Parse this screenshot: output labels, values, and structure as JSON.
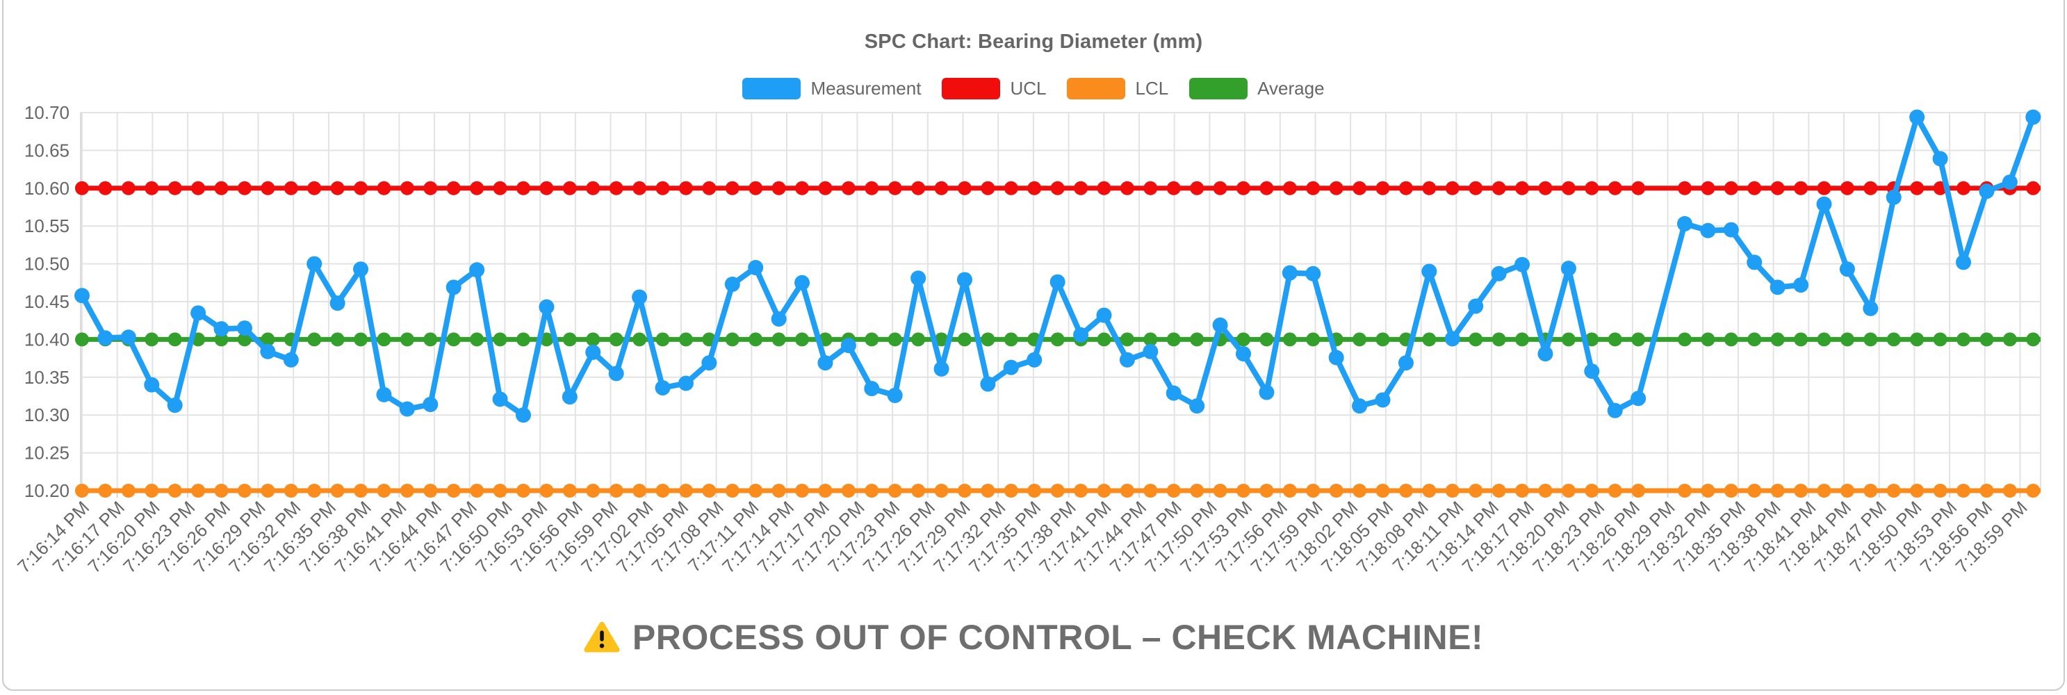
{
  "title": "SPC Chart: Bearing Diameter (mm)",
  "legend": {
    "items": [
      {
        "id": "measurement",
        "label": "Measurement",
        "color": "#1E9EF4"
      },
      {
        "id": "ucl",
        "label": "UCL",
        "color": "#F20D0D"
      },
      {
        "id": "lcl",
        "label": "LCL",
        "color": "#F98C1C"
      },
      {
        "id": "average",
        "label": "Average",
        "color": "#33A02C"
      }
    ]
  },
  "warning": {
    "icon": "warning-triangle",
    "text": "PROCESS OUT OF CONTROL – CHECK MACHINE!"
  },
  "chart_data": {
    "type": "line",
    "title": "SPC Chart: Bearing Diameter (mm)",
    "xlabel": "",
    "ylabel": "",
    "ylim": [
      10.2,
      10.7
    ],
    "y_ticks": [
      10.7,
      10.65,
      10.6,
      10.55,
      10.5,
      10.45,
      10.4,
      10.35,
      10.3,
      10.25,
      10.2
    ],
    "grid": true,
    "legend_position": "top",
    "x_tick_labels": [
      "7:16:14 PM",
      "7:16:17 PM",
      "7:16:20 PM",
      "7:16:23 PM",
      "7:16:26 PM",
      "7:16:29 PM",
      "7:16:32 PM",
      "7:16:35 PM",
      "7:16:38 PM",
      "7:16:41 PM",
      "7:16:44 PM",
      "7:16:47 PM",
      "7:16:50 PM",
      "7:16:53 PM",
      "7:16:56 PM",
      "7:16:59 PM",
      "7:17:02 PM",
      "7:17:05 PM",
      "7:17:08 PM",
      "7:17:11 PM",
      "7:17:14 PM",
      "7:17:17 PM",
      "7:17:20 PM",
      "7:17:23 PM",
      "7:17:26 PM",
      "7:17:29 PM",
      "7:17:32 PM",
      "7:17:35 PM",
      "7:17:38 PM",
      "7:17:41 PM",
      "7:17:44 PM",
      "7:17:47 PM",
      "7:17:50 PM",
      "7:17:53 PM",
      "7:17:56 PM",
      "7:17:59 PM",
      "7:18:02 PM",
      "7:18:05 PM",
      "7:18:08 PM",
      "7:18:11 PM",
      "7:18:14 PM",
      "7:18:17 PM",
      "7:18:20 PM",
      "7:18:23 PM",
      "7:18:26 PM",
      "7:18:29 PM",
      "7:18:32 PM",
      "7:18:35 PM",
      "7:18:38 PM",
      "7:18:41 PM",
      "7:18:44 PM",
      "7:18:47 PM",
      "7:18:50 PM",
      "7:18:53 PM",
      "7:18:56 PM",
      "7:18:59 PM"
    ],
    "series": [
      {
        "name": "Measurement",
        "color": "#1E9EF4",
        "missing_sample_after_index": 67,
        "values": [
          10.458,
          10.402,
          10.403,
          10.34,
          10.313,
          10.435,
          10.414,
          10.415,
          10.384,
          10.373,
          10.5,
          10.448,
          10.493,
          10.327,
          10.308,
          10.314,
          10.469,
          10.492,
          10.321,
          10.3,
          10.443,
          10.324,
          10.383,
          10.355,
          10.456,
          10.336,
          10.342,
          10.369,
          10.473,
          10.495,
          10.427,
          10.475,
          10.369,
          10.392,
          10.335,
          10.326,
          10.481,
          10.361,
          10.479,
          10.341,
          10.363,
          10.373,
          10.476,
          10.406,
          10.432,
          10.373,
          10.384,
          10.329,
          10.312,
          10.419,
          10.381,
          10.33,
          10.488,
          10.487,
          10.376,
          10.312,
          10.32,
          10.369,
          10.49,
          10.401,
          10.444,
          10.487,
          10.499,
          10.381,
          10.494,
          10.358,
          10.306,
          10.322,
          10.553,
          10.544,
          10.545,
          10.502,
          10.469,
          10.472,
          10.579,
          10.493,
          10.441,
          10.588,
          10.694,
          10.639,
          10.502,
          10.596,
          10.608,
          10.694
        ]
      },
      {
        "name": "UCL",
        "color": "#F20D0D",
        "value": 10.6
      },
      {
        "name": "LCL",
        "color": "#F98C1C",
        "value": 10.2
      },
      {
        "name": "Average",
        "color": "#33A02C",
        "value": 10.4
      }
    ]
  },
  "colors": {
    "grid": "#E3E3E3",
    "tick_text": "#666666",
    "warning_text": "#6E6E6E",
    "card_border": "#CBCBCB"
  }
}
